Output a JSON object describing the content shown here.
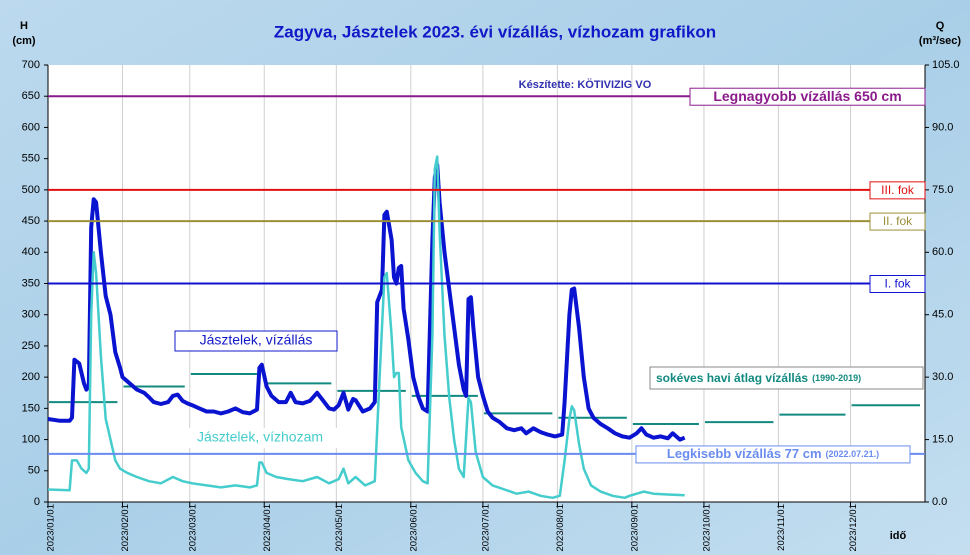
{
  "chart_data": {
    "type": "line",
    "title": "Zagyva, Jásztelek 2023. évi vízállás, vízhozam grafikon",
    "credit": "Készítette: KÖTIVIZIG VO",
    "y_label_symbol": "H",
    "y_label_unit": "(cm)",
    "y2_label_symbol": "Q",
    "y2_label_unit": "(m³/sec)",
    "x_label": "idő",
    "xlim": [
      0,
      365
    ],
    "xticks": [
      {
        "value": 0,
        "label": "2023/01/01"
      },
      {
        "value": 31,
        "label": "2023/02/01"
      },
      {
        "value": 59,
        "label": "2023/03/01"
      },
      {
        "value": 90,
        "label": "2023/04/01"
      },
      {
        "value": 120,
        "label": "2023/05/01"
      },
      {
        "value": 151,
        "label": "2023/06/01"
      },
      {
        "value": 181,
        "label": "2023/07/01"
      },
      {
        "value": 212,
        "label": "2023/08/01"
      },
      {
        "value": 243,
        "label": "2023/09/01"
      },
      {
        "value": 273,
        "label": "2023/10/01"
      },
      {
        "value": 304,
        "label": "2023/11/01"
      },
      {
        "value": 334,
        "label": "2023/12/01"
      }
    ],
    "ylim": [
      0,
      700
    ],
    "yticks": [
      0,
      50,
      100,
      150,
      200,
      250,
      300,
      350,
      400,
      450,
      500,
      550,
      600,
      650,
      700
    ],
    "y2lim": [
      0,
      105
    ],
    "y2ticks": [
      {
        "value": 0,
        "label": "0.0"
      },
      {
        "value": 15,
        "label": "15.0"
      },
      {
        "value": 30,
        "label": "30.0"
      },
      {
        "value": 45,
        "label": "45.0"
      },
      {
        "value": 60,
        "label": "60.0"
      },
      {
        "value": 75,
        "label": "75.0"
      },
      {
        "value": 90,
        "label": "90.0"
      },
      {
        "value": 105,
        "label": "105.0"
      }
    ],
    "grid": true,
    "series": [
      {
        "name": "Jásztelek, vízállás",
        "color": "#0a14d0",
        "x": [
          0,
          5,
          9,
          10,
          11,
          13,
          15,
          16,
          17,
          18,
          19,
          20,
          22,
          24,
          26,
          28,
          30,
          31,
          34,
          37,
          40,
          42,
          44,
          47,
          50,
          52,
          54,
          56,
          58,
          60,
          63,
          66,
          69,
          72,
          75,
          78,
          81,
          84,
          87,
          88,
          89,
          91,
          93,
          96,
          99,
          101,
          103,
          106,
          109,
          112,
          115,
          117,
          119,
          121,
          123,
          125,
          127,
          128,
          131,
          134,
          136,
          137,
          139,
          140,
          141,
          143,
          144,
          145,
          146,
          147,
          148,
          150,
          152,
          154,
          156,
          158,
          160,
          161,
          162,
          163,
          165,
          167,
          169,
          171,
          173,
          174,
          175,
          176,
          177,
          179,
          181,
          183,
          185,
          188,
          191,
          194,
          197,
          199,
          202,
          205,
          208,
          211,
          214,
          215,
          217,
          218,
          219,
          221,
          223,
          225,
          227,
          230,
          233,
          236,
          239,
          242,
          245,
          247,
          249,
          252,
          255,
          258,
          260,
          263,
          265
        ],
        "values": [
          133,
          130,
          130,
          135,
          228,
          222,
          190,
          180,
          185,
          440,
          485,
          480,
          400,
          330,
          300,
          240,
          215,
          200,
          190,
          180,
          175,
          168,
          160,
          157,
          160,
          170,
          172,
          162,
          158,
          155,
          150,
          145,
          145,
          142,
          145,
          150,
          144,
          142,
          148,
          215,
          220,
          185,
          170,
          160,
          160,
          175,
          160,
          158,
          162,
          175,
          160,
          150,
          148,
          155,
          175,
          148,
          165,
          163,
          145,
          150,
          160,
          320,
          340,
          460,
          465,
          420,
          360,
          350,
          375,
          378,
          310,
          260,
          200,
          170,
          150,
          145,
          420,
          520,
          540,
          480,
          400,
          340,
          280,
          220,
          180,
          170,
          325,
          328,
          280,
          200,
          170,
          145,
          135,
          128,
          118,
          115,
          118,
          110,
          118,
          112,
          108,
          105,
          108,
          160,
          300,
          340,
          342,
          280,
          200,
          150,
          135,
          125,
          118,
          110,
          105,
          103,
          110,
          118,
          108,
          103,
          105,
          102,
          110,
          100,
          103
        ]
      },
      {
        "name": "Jásztelek, vízhozam",
        "color": "#45cccc",
        "axis": "y2",
        "x": [
          0,
          9,
          10,
          12,
          14,
          16,
          17,
          18,
          19,
          20,
          22,
          24,
          26,
          28,
          30,
          33,
          37,
          42,
          47,
          52,
          56,
          60,
          66,
          72,
          78,
          84,
          87,
          88,
          89,
          91,
          95,
          100,
          106,
          112,
          117,
          121,
          123,
          125,
          128,
          132,
          136,
          138,
          140,
          141,
          143,
          144,
          145,
          146,
          147,
          150,
          153,
          156,
          158,
          160,
          161,
          162,
          163,
          165,
          167,
          169,
          171,
          173,
          175,
          176,
          178,
          181,
          185,
          190,
          195,
          200,
          205,
          210,
          213,
          215,
          217,
          218,
          219,
          221,
          223,
          226,
          230,
          235,
          240,
          242,
          245,
          248,
          252,
          258,
          265
        ],
        "values": [
          3,
          2.8,
          10,
          10,
          8,
          7,
          8,
          45,
          60,
          55,
          35,
          20,
          15,
          10,
          8,
          7,
          6,
          5,
          4.5,
          6,
          5,
          4.5,
          4,
          3.5,
          4,
          3.5,
          4,
          9.5,
          9.5,
          7,
          6,
          5.5,
          5,
          6,
          4.5,
          5.5,
          8,
          4.5,
          6,
          4,
          5,
          30,
          54,
          55,
          40,
          30,
          31,
          31,
          18,
          10,
          7,
          5,
          4.5,
          40,
          80,
          83,
          65,
          40,
          25,
          15,
          8,
          6,
          25,
          24,
          12,
          6,
          4,
          3,
          2,
          2.5,
          1.5,
          1,
          1.5,
          10,
          20,
          23,
          22,
          14,
          8,
          4,
          2.5,
          1.5,
          1,
          1.5,
          2,
          2.5,
          2,
          1.8,
          1.6
        ]
      }
    ],
    "reference_lines": [
      {
        "label": "Legnagyobb vízállás 650 cm",
        "value": 650,
        "color": "#8b1a8b"
      },
      {
        "label": "III. fok",
        "value": 500,
        "color": "#e01010"
      },
      {
        "label": "II. fok",
        "value": 450,
        "color": "#9c8f3a"
      },
      {
        "label": "I. fok",
        "value": 350,
        "color": "#1010d0"
      },
      {
        "label": "Legkisebb vízállás 77 cm",
        "note": "(2022.07.21.)",
        "value": 77,
        "color": "#6a8cf0"
      }
    ],
    "monthly_average": {
      "name": "sokéves havi átlag vízállás",
      "note": "(1990-2019)",
      "color": "#128a80",
      "values": [
        160,
        185,
        205,
        190,
        178,
        170,
        142,
        135,
        125,
        128,
        140,
        155
      ]
    }
  }
}
